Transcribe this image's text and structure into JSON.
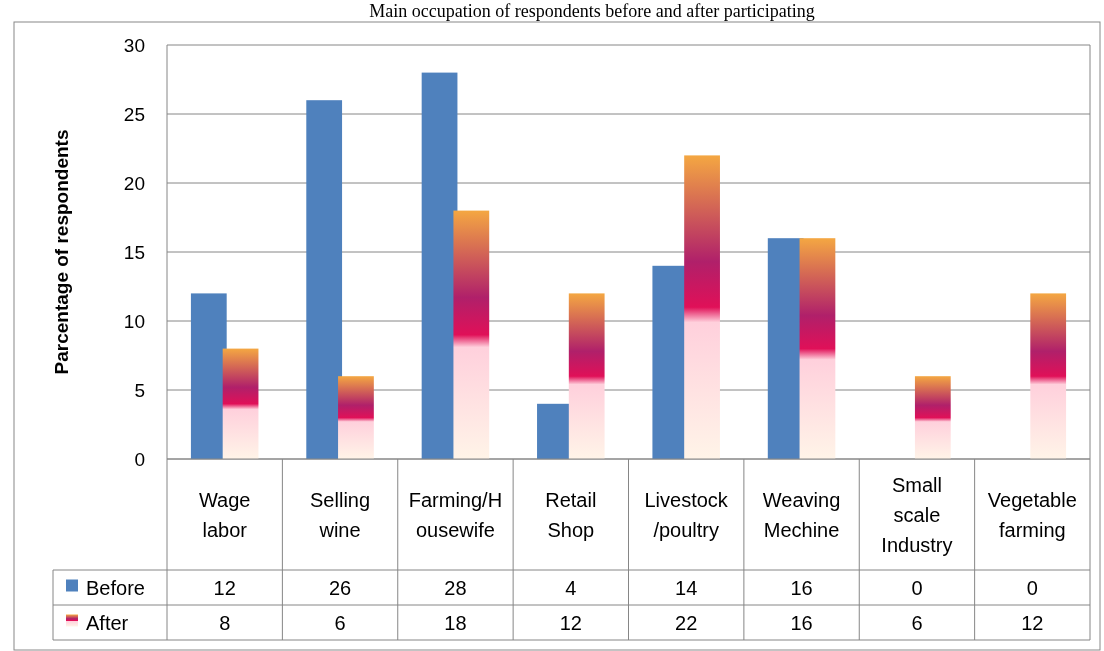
{
  "chart_data": {
    "type": "bar",
    "title": "Main occupation of respondents before and after participating",
    "ylabel": "Parcentage of respondents",
    "categories": [
      "Wage labor",
      "Selling wine",
      "Farming/Housewife",
      "Retail Shop",
      "Livestock /poultry",
      "Weaving Mechine",
      "Small scale Industry",
      "Vegetable farming"
    ],
    "series": [
      {
        "name": "Before",
        "color": "#4f81bd",
        "values": [
          12,
          26,
          28,
          4,
          14,
          16,
          0,
          0
        ]
      },
      {
        "name": "After",
        "color": "#f4a742",
        "values": [
          8,
          6,
          18,
          12,
          22,
          16,
          6,
          12
        ]
      }
    ],
    "ylim": [
      0,
      30
    ],
    "yticks": [
      0,
      5,
      10,
      15,
      20,
      25,
      30
    ],
    "grid": "y",
    "legend": "bottom",
    "data_labels": true
  }
}
